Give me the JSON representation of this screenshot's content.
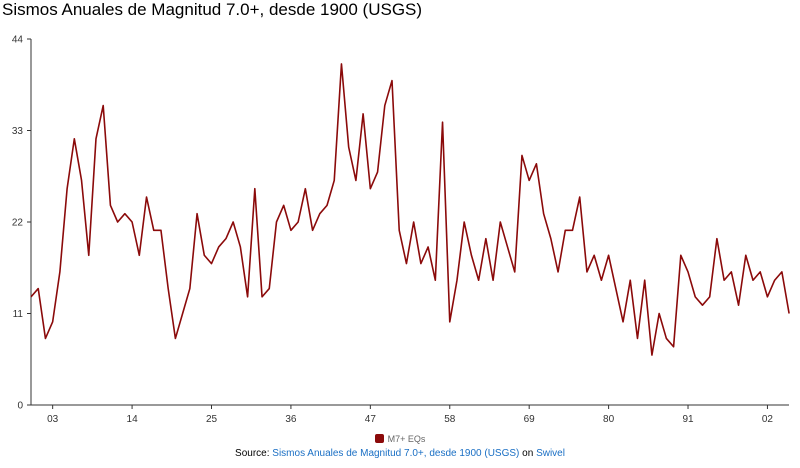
{
  "chart_data": {
    "type": "line",
    "title": "Sismos Anuales de Magnitud 7.0+, desde 1900 (USGS)",
    "xlabel": "",
    "ylabel": "",
    "x_start_year": 1900,
    "x_tick_labels": [
      {
        "year": 1903,
        "label": "03"
      },
      {
        "year": 1914,
        "label": "14"
      },
      {
        "year": 1925,
        "label": "25"
      },
      {
        "year": 1936,
        "label": "36"
      },
      {
        "year": 1947,
        "label": "47"
      },
      {
        "year": 1958,
        "label": "58"
      },
      {
        "year": 1969,
        "label": "69"
      },
      {
        "year": 1980,
        "label": "80"
      },
      {
        "year": 1991,
        "label": "91"
      },
      {
        "year": 2002,
        "label": "02"
      }
    ],
    "y_ticks": [
      0,
      11,
      22,
      33,
      44
    ],
    "ylim": [
      0,
      44
    ],
    "grid": false,
    "line_color": "#8b0a0a",
    "series": [
      {
        "name": "M7+ EQs",
        "values": [
          13,
          14,
          8,
          10,
          16,
          26,
          32,
          27,
          18,
          32,
          36,
          24,
          22,
          23,
          22,
          18,
          25,
          21,
          21,
          14,
          8,
          11,
          14,
          23,
          18,
          17,
          19,
          20,
          22,
          19,
          13,
          26,
          13,
          14,
          22,
          24,
          21,
          22,
          26,
          21,
          23,
          24,
          27,
          41,
          31,
          27,
          35,
          26,
          28,
          36,
          39,
          21,
          17,
          22,
          17,
          19,
          15,
          34,
          10,
          15,
          22,
          18,
          15,
          20,
          15,
          22,
          19,
          16,
          30,
          27,
          29,
          23,
          20,
          16,
          21,
          21,
          25,
          16,
          18,
          15,
          18,
          14,
          10,
          15,
          8,
          15,
          6,
          11,
          8,
          7,
          18,
          16,
          13,
          12,
          13,
          20,
          15,
          16,
          12,
          18,
          15,
          16,
          13,
          15,
          16,
          11
        ]
      }
    ]
  },
  "legend": {
    "label": "M7+ EQs"
  },
  "footer": {
    "prefix": "Source: ",
    "source_link": "Sismos Anuales de Magnitud 7.0+, desde 1900 (USGS)",
    "middle": " on ",
    "site_link": "Swivel"
  }
}
